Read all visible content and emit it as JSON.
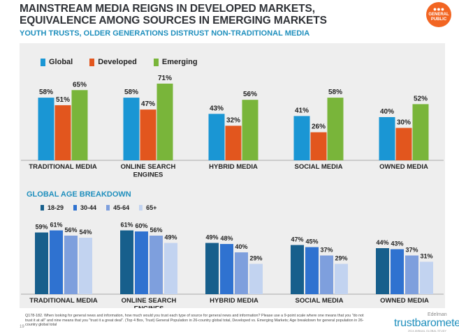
{
  "header": {
    "title_line1": "MAINSTREAM MEDIA REIGNS IN DEVELOPED MARKETS,",
    "title_line2": "EQUIVALENCE AMONG SOURCES IN EMERGING MARKETS",
    "subtitle": "YOUTH TRUSTS, OLDER GENERATIONS DISTRUST NON-TRADITIONAL MEDIA",
    "badge_line1": "GENERAL",
    "badge_line2": "PUBLIC"
  },
  "colors": {
    "global": "#1a96d4",
    "developed": "#e2561e",
    "emerging": "#79b53a",
    "age_18_29": "#175f8c",
    "age_30_44": "#2f72d0",
    "age_45_64": "#7e9fdd",
    "age_65_plus": "#c2d3f0",
    "title": "#2f3237",
    "accent": "#1f8fbd",
    "panel": "#eeeeee"
  },
  "chart_data": [
    {
      "type": "bar",
      "categories": [
        "TRADITIONAL MEDIA",
        "ONLINE SEARCH ENGINES",
        "HYBRID MEDIA",
        "SOCIAL MEDIA",
        "OWNED MEDIA"
      ],
      "category_lines": [
        [
          "TRADITIONAL MEDIA"
        ],
        [
          "ONLINE SEARCH",
          "ENGINES"
        ],
        [
          "HYBRID MEDIA"
        ],
        [
          "SOCIAL MEDIA"
        ],
        [
          "OWNED MEDIA"
        ]
      ],
      "series": [
        {
          "name": "Global",
          "values": [
            58,
            58,
            43,
            41,
            40
          ],
          "labels": [
            "58%",
            "58%",
            "43%",
            "41%",
            "40%"
          ]
        },
        {
          "name": "Developed",
          "values": [
            51,
            47,
            32,
            26,
            30
          ],
          "labels": [
            "51%",
            "47%",
            "32%",
            "26%",
            "30%"
          ]
        },
        {
          "name": "Emerging",
          "values": [
            65,
            71,
            56,
            58,
            52
          ],
          "labels": [
            "65%",
            "71%",
            "56%",
            "58%",
            "52%"
          ]
        }
      ],
      "ylim": [
        0,
        100
      ],
      "grid": false,
      "legend": "top-left"
    },
    {
      "type": "bar",
      "title": "GLOBAL AGE BREAKDOWN",
      "categories": [
        "TRADITIONAL MEDIA",
        "ONLINE SEARCH ENGINES",
        "HYBRID MEDIA",
        "SOCIAL MEDIA",
        "OWNED MEDIA"
      ],
      "category_lines": [
        [
          "TRADITIONAL MEDIA"
        ],
        [
          "ONLINE SEARCH",
          "ENGINES"
        ],
        [
          "HYBRID MEDIA"
        ],
        [
          "SOCIAL MEDIA"
        ],
        [
          "OWNED MEDIA"
        ]
      ],
      "series": [
        {
          "name": "18-29",
          "values": [
            59,
            61,
            49,
            47,
            44
          ],
          "labels": [
            "59%",
            "61%",
            "49%",
            "47%",
            "44%"
          ]
        },
        {
          "name": "30-44",
          "values": [
            61,
            60,
            48,
            45,
            43
          ],
          "labels": [
            "61%",
            "60%",
            "48%",
            "45%",
            "43%"
          ]
        },
        {
          "name": "45-64",
          "values": [
            56,
            56,
            40,
            37,
            37
          ],
          "labels": [
            "56%",
            "56%",
            "40%",
            "37%",
            "37%"
          ]
        },
        {
          "name": "65+",
          "values": [
            54,
            49,
            29,
            29,
            31
          ],
          "labels": [
            "54%",
            "49%",
            "29%",
            "29%",
            "31%"
          ]
        }
      ],
      "ylim": [
        0,
        100
      ],
      "grid": false,
      "legend": "top-left"
    }
  ],
  "footnote": "Q178-182. When looking for general news and information, how much would you trust each type of source for general news and information? Please use a 9-point scale where one means that you \"do not trust it at all\" and nine means that you \"trust it a great deal\". (Top 4 Box, Trust) General Population in 26-country global total, Developed vs. Emerging Markets; Age breakdown for general population in 26-country global total",
  "page_number": "19",
  "brand": {
    "small": "Edelman",
    "main": "trustbarometer",
    "tagline": "2014 ANNUAL GLOBAL STUDY"
  }
}
